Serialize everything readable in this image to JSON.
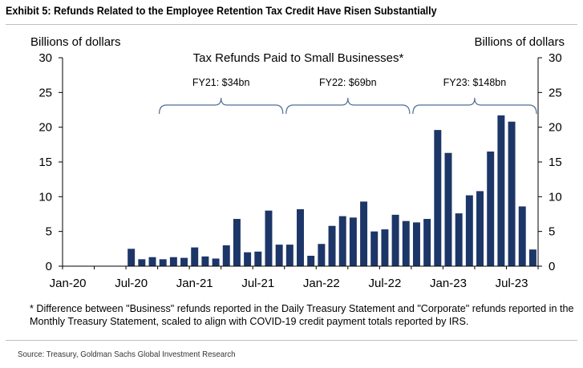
{
  "header": {
    "title": "Exhibit 5: Refunds Related to the Employee Retention Tax Credit Have Risen Substantially"
  },
  "footnote": "* Difference between \"Business\" refunds reported in the Daily Treasury Statement and \"Corporate\" refunds reported in the Monthly Treasury Statement, scaled to align with COVID-19 credit payment totals reported by IRS.",
  "source": "Source: Treasury, Goldman Sachs Global Investment Research",
  "colors": {
    "bar": "#1d3668",
    "bracket": "#4f6f97",
    "axis": "#000000"
  },
  "chart_data": {
    "type": "bar",
    "title": "Tax Refunds Paid to Small Businesses*",
    "ylabel_left": "Billions of dollars",
    "ylabel_right": "Billions of dollars",
    "ylim": [
      0,
      30
    ],
    "yticks": [
      0,
      5,
      10,
      15,
      20,
      25,
      30
    ],
    "ytick_labels": [
      "0",
      "5",
      "10",
      "15",
      "20",
      "25",
      "30"
    ],
    "xtick_labels": [
      "Jan-20",
      "Jul-20",
      "Jan-21",
      "Jul-21",
      "Jan-22",
      "Jul-22",
      "Jan-23",
      "Jul-23"
    ],
    "categories": [
      "Jan-20",
      "Feb-20",
      "Mar-20",
      "Apr-20",
      "May-20",
      "Jun-20",
      "Jul-20",
      "Aug-20",
      "Sep-20",
      "Oct-20",
      "Nov-20",
      "Dec-20",
      "Jan-21",
      "Feb-21",
      "Mar-21",
      "Apr-21",
      "May-21",
      "Jun-21",
      "Jul-21",
      "Aug-21",
      "Sep-21",
      "Oct-21",
      "Nov-21",
      "Dec-21",
      "Jan-22",
      "Feb-22",
      "Mar-22",
      "Apr-22",
      "May-22",
      "Jun-22",
      "Jul-22",
      "Aug-22",
      "Sep-22",
      "Oct-22",
      "Nov-22",
      "Dec-22",
      "Jan-23",
      "Feb-23",
      "Mar-23",
      "Apr-23",
      "May-23",
      "Jun-23",
      "Jul-23",
      "Aug-23",
      "Sep-23"
    ],
    "values": [
      0,
      0,
      0,
      0,
      0,
      0,
      2.5,
      1.0,
      1.3,
      1.0,
      1.3,
      1.2,
      2.7,
      1.4,
      1.1,
      3.0,
      6.8,
      2.0,
      2.1,
      8.0,
      3.1,
      3.1,
      8.2,
      1.5,
      3.2,
      5.8,
      7.2,
      7.0,
      9.3,
      5.0,
      5.3,
      7.4,
      6.5,
      6.3,
      6.8,
      19.6,
      16.3,
      7.6,
      10.2,
      10.8,
      16.5,
      21.7,
      20.8,
      8.6,
      2.4
    ],
    "annotations": [
      {
        "label": "FY21: $34bn",
        "from": "Oct-20",
        "to": "Sep-21"
      },
      {
        "label": "FY22: $69bn",
        "from": "Oct-21",
        "to": "Sep-22"
      },
      {
        "label": "FY23: $148bn",
        "from": "Oct-22",
        "to": "Sep-23"
      }
    ],
    "grid": false,
    "legend": "none"
  }
}
